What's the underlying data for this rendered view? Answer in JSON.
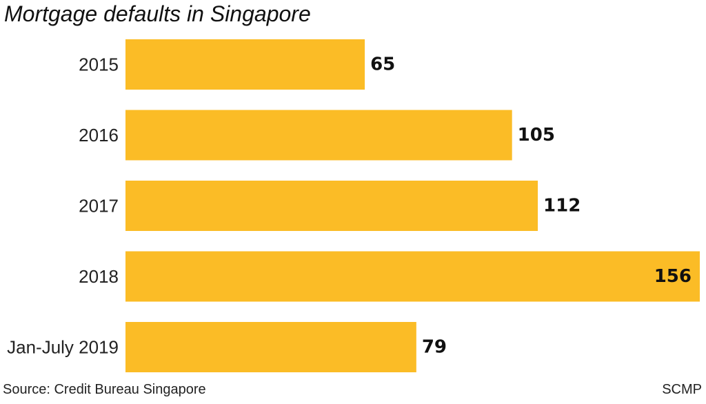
{
  "chart_data": {
    "type": "bar",
    "orientation": "horizontal",
    "title": "Mortgage defaults in Singapore",
    "categories": [
      "2015",
      "2016",
      "2017",
      "2018",
      "Jan-July 2019"
    ],
    "values": [
      65,
      105,
      112,
      156,
      79
    ],
    "value_labels": [
      "65",
      "105",
      "112",
      "156",
      "79"
    ],
    "xlim": [
      0,
      156
    ],
    "grid": false,
    "legend": "none",
    "bar_color": "#FBBC26"
  },
  "footer": {
    "source": "Source: Credit Bureau Singapore",
    "credit": "SCMP"
  }
}
